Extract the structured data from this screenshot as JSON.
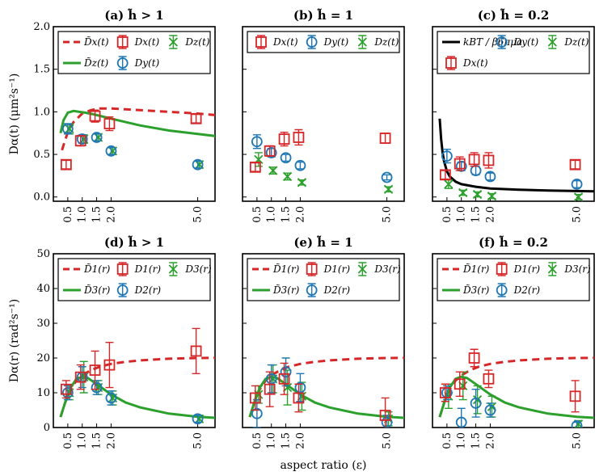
{
  "colors": {
    "x": "#d62728",
    "y": "#1f77b4",
    "z": "#2ca02c",
    "theory": "#000000"
  },
  "xlabel": "aspect ratio (ε)",
  "xticks": [
    "0.5",
    "1.0",
    "1.5",
    "2.0",
    "5.0"
  ],
  "chart_data": [
    {
      "type": "scatter",
      "id": "a",
      "title": "(a) h̃ > 1",
      "ylabel": "Dα(t) (μm²s⁻¹)",
      "ylim": [
        -0.05,
        2.0
      ],
      "yticks": [
        "0.0",
        "0.5",
        "1.0",
        "1.5",
        "2.0"
      ],
      "legend": [
        "D̃x(t)",
        "Dx(t)",
        "Dz(t)",
        "D̃z(t)",
        "Dy(t)"
      ],
      "points": {
        "x": [
          [
            0.5,
            0.38,
            0.05
          ],
          [
            1.0,
            0.66,
            0.06
          ],
          [
            1.5,
            0.95,
            0.07
          ],
          [
            2.0,
            0.86,
            0.08
          ],
          [
            5.0,
            0.92,
            0.05
          ]
        ],
        "y": [
          [
            0.5,
            0.8,
            0.06
          ],
          [
            1.0,
            0.68,
            0.05
          ],
          [
            1.5,
            0.7,
            0.04
          ],
          [
            2.0,
            0.54,
            0.04
          ],
          [
            5.0,
            0.38,
            0.04
          ]
        ],
        "z": [
          [
            0.5,
            0.8,
            0.06
          ],
          [
            1.0,
            0.68,
            0.05
          ],
          [
            1.5,
            0.7,
            0.04
          ],
          [
            2.0,
            0.54,
            0.04
          ],
          [
            5.0,
            0.38,
            0.04
          ]
        ]
      },
      "curves": {
        "x": {
          "x": [
            0.3,
            0.4,
            0.5,
            0.7,
            1.0,
            1.3,
            1.6,
            2.0,
            3.0,
            4.0,
            5.0,
            6.0
          ],
          "y": [
            0.55,
            0.66,
            0.76,
            0.88,
            0.98,
            1.02,
            1.04,
            1.04,
            1.02,
            1.0,
            0.98,
            0.95
          ]
        },
        "z": {
          "x": [
            0.25,
            0.35,
            0.5,
            0.7,
            0.9,
            1.1,
            1.4,
            2.0,
            3.0,
            4.0,
            5.0,
            6.0
          ],
          "y": [
            0.75,
            0.9,
            0.99,
            1.01,
            1.0,
            0.99,
            0.97,
            0.92,
            0.84,
            0.78,
            0.74,
            0.7
          ]
        }
      }
    },
    {
      "type": "scatter",
      "id": "b",
      "title": "(b) h̃ = 1",
      "ylim": [
        -0.05,
        2.0
      ],
      "legend": [
        "Dx(t)",
        "Dy(t)",
        "Dz(t)"
      ],
      "points": {
        "x": [
          [
            0.5,
            0.35,
            0.05
          ],
          [
            1.0,
            0.54,
            0.06
          ],
          [
            1.5,
            0.68,
            0.08
          ],
          [
            2.0,
            0.7,
            0.09
          ],
          [
            5.0,
            0.69,
            0.06
          ]
        ],
        "y": [
          [
            0.5,
            0.65,
            0.08
          ],
          [
            1.0,
            0.52,
            0.05
          ],
          [
            1.5,
            0.46,
            0.04
          ],
          [
            2.0,
            0.37,
            0.04
          ],
          [
            5.0,
            0.23,
            0.03
          ]
        ],
        "z": [
          [
            0.5,
            0.44,
            0.08
          ],
          [
            1.0,
            0.31,
            0.04
          ],
          [
            1.5,
            0.24,
            0.04
          ],
          [
            2.0,
            0.17,
            0.03
          ],
          [
            5.0,
            0.09,
            0.03
          ]
        ]
      }
    },
    {
      "type": "scatter",
      "id": "c",
      "title": "(c) h̃ = 0.2",
      "ylim": [
        -0.05,
        2.0
      ],
      "legend": [
        "kBT / β6πμa",
        "Dy(t)",
        "Dz(t)",
        "Dx(t)"
      ],
      "points": {
        "x": [
          [
            0.5,
            0.26,
            0.05
          ],
          [
            1.0,
            0.39,
            0.08
          ],
          [
            1.5,
            0.44,
            0.08
          ],
          [
            2.0,
            0.43,
            0.09
          ],
          [
            5.0,
            0.38,
            0.05
          ]
        ],
        "y": [
          [
            0.5,
            0.48,
            0.08
          ],
          [
            1.0,
            0.36,
            0.05
          ],
          [
            1.5,
            0.31,
            0.05
          ],
          [
            2.0,
            0.24,
            0.04
          ],
          [
            5.0,
            0.15,
            0.04
          ]
        ],
        "z": [
          [
            0.5,
            0.15,
            0.05
          ],
          [
            1.0,
            0.05,
            0.03
          ],
          [
            1.5,
            0.03,
            0.03
          ],
          [
            2.0,
            0.01,
            0.03
          ],
          [
            5.0,
            0.0,
            0.03
          ]
        ]
      },
      "curves": {
        "theory": {
          "x": [
            0.25,
            0.3,
            0.35,
            0.4,
            0.5,
            0.6,
            0.8,
            1.0,
            1.5,
            2.0,
            3.0,
            4.0,
            5.0,
            6.0
          ],
          "y": [
            0.92,
            0.68,
            0.52,
            0.42,
            0.3,
            0.24,
            0.18,
            0.15,
            0.12,
            0.1,
            0.085,
            0.075,
            0.07,
            0.065
          ]
        }
      }
    },
    {
      "type": "scatter",
      "id": "d",
      "title": "(d) h̃ > 1",
      "ylabel": "Dα(r) (rad²s⁻¹)",
      "ylim": [
        0,
        50
      ],
      "yticks": [
        "0",
        "10",
        "20",
        "30",
        "40",
        "50"
      ],
      "legend": [
        "D̃1(r)",
        "D1(r)",
        "D3(r)",
        "D̃3(r)",
        "D2(r)"
      ],
      "points": {
        "x": [
          [
            0.5,
            11,
            2.5
          ],
          [
            1.0,
            14.5,
            3.5
          ],
          [
            1.5,
            16.5,
            5.5
          ],
          [
            2.0,
            18,
            6.5
          ],
          [
            5.0,
            22,
            6.5
          ]
        ],
        "y": [
          [
            0.5,
            10,
            2.0
          ],
          [
            1.0,
            14.5,
            3.0
          ],
          [
            1.5,
            11.5,
            2.0
          ],
          [
            2.0,
            8.5,
            2.0
          ],
          [
            5.0,
            2.5,
            1.0
          ]
        ],
        "z": [
          [
            0.5,
            10,
            2.0
          ],
          [
            1.0,
            14.5,
            4.5
          ],
          [
            1.5,
            11.5,
            2.0
          ],
          [
            2.0,
            8.5,
            2.0
          ],
          [
            5.0,
            2.5,
            1.0
          ]
        ]
      },
      "curves": {
        "x": {
          "x": [
            0.25,
            0.4,
            0.6,
            0.8,
            1.0,
            1.3,
            1.6,
            2.0,
            2.5,
            3.0,
            4.0,
            5.0,
            6.0
          ],
          "y": [
            3,
            7,
            11,
            13.5,
            15,
            16.5,
            17.5,
            18.3,
            18.9,
            19.3,
            19.8,
            20.0,
            20.1
          ]
        },
        "z": {
          "x": [
            0.25,
            0.4,
            0.6,
            0.8,
            1.0,
            1.2,
            1.5,
            2.0,
            2.5,
            3.0,
            4.0,
            5.0,
            6.0
          ],
          "y": [
            3,
            7,
            11.5,
            14,
            14.6,
            14.2,
            12.5,
            9.5,
            7.2,
            5.8,
            4.0,
            3.1,
            2.6
          ]
        }
      }
    },
    {
      "type": "scatter",
      "id": "e",
      "title": "(e) h̃ = 1",
      "ylim": [
        0,
        50
      ],
      "legend": [
        "D̃1(r)",
        "D1(r)",
        "D3(r)",
        "D̃3(r)",
        "D2(r)"
      ],
      "points": {
        "x": [
          [
            0.5,
            8.5,
            3.5
          ],
          [
            1.0,
            11,
            5.0
          ],
          [
            1.5,
            14,
            4.5
          ],
          [
            2.0,
            8.5,
            4.0
          ],
          [
            5.0,
            3.5,
            5.0
          ]
        ],
        "y": [
          [
            0.5,
            4.0,
            4.0
          ],
          [
            1.0,
            14,
            4.0
          ],
          [
            1.5,
            16,
            4.0
          ],
          [
            2.0,
            11.5,
            4.0
          ],
          [
            5.0,
            1.5,
            2.0
          ]
        ],
        "z": [
          [
            0.5,
            9.5,
            2.5
          ],
          [
            1.0,
            14,
            4.0
          ],
          [
            1.5,
            11.5,
            5.0
          ],
          [
            2.0,
            9,
            4.0
          ],
          [
            5.0,
            2.5,
            2.0
          ]
        ]
      },
      "curves": {
        "x": {
          "x": [
            0.25,
            0.4,
            0.6,
            0.8,
            1.0,
            1.3,
            1.6,
            2.0,
            2.5,
            3.0,
            4.0,
            5.0,
            6.0
          ],
          "y": [
            3,
            7,
            11,
            13.5,
            15,
            16.5,
            17.5,
            18.3,
            18.9,
            19.3,
            19.8,
            20.0,
            20.1
          ]
        },
        "z": {
          "x": [
            0.25,
            0.4,
            0.6,
            0.8,
            1.0,
            1.2,
            1.5,
            2.0,
            2.5,
            3.0,
            4.0,
            5.0,
            6.0
          ],
          "y": [
            3,
            7,
            11.5,
            14,
            14.6,
            14.2,
            12.5,
            9.5,
            7.2,
            5.8,
            4.0,
            3.1,
            2.6
          ]
        }
      }
    },
    {
      "type": "scatter",
      "id": "f",
      "title": "(f) h̃ = 0.2",
      "ylim": [
        0,
        50
      ],
      "legend": [
        "D̃1(r)",
        "D1(r)",
        "D3(r)",
        "D̃3(r)",
        "D2(r)"
      ],
      "points": {
        "x": [
          [
            0.5,
            10,
            2.5
          ],
          [
            1.0,
            12.5,
            3.5
          ],
          [
            1.5,
            20,
            2.5
          ],
          [
            2.0,
            14,
            2.5
          ],
          [
            5.0,
            9,
            4.5
          ]
        ],
        "y": [
          [
            0.5,
            10,
            2.0
          ],
          [
            1.0,
            1.5,
            4.0
          ],
          [
            1.5,
            7,
            4.0
          ],
          [
            2.0,
            5,
            2.0
          ],
          [
            5.0,
            0.5,
            1.0
          ]
        ],
        "z": [
          [
            0.5,
            9,
            3.5
          ],
          [
            1.0,
            12,
            4.0
          ],
          [
            1.5,
            8,
            4.0
          ],
          [
            2.0,
            6,
            3.0
          ],
          [
            5.0,
            1.0,
            1.0
          ]
        ]
      },
      "curves": {
        "x": {
          "x": [
            0.25,
            0.4,
            0.6,
            0.8,
            1.0,
            1.3,
            1.6,
            2.0,
            2.5,
            3.0,
            4.0,
            5.0,
            6.0
          ],
          "y": [
            3,
            7,
            11,
            13.5,
            15,
            16.5,
            17.5,
            18.3,
            18.9,
            19.3,
            19.8,
            20.0,
            20.1
          ]
        },
        "z": {
          "x": [
            0.25,
            0.4,
            0.6,
            0.8,
            1.0,
            1.2,
            1.5,
            2.0,
            2.5,
            3.0,
            4.0,
            5.0,
            6.0
          ],
          "y": [
            3,
            7,
            11.5,
            14,
            14.6,
            14.2,
            12.5,
            9.5,
            7.2,
            5.8,
            4.0,
            3.1,
            2.6
          ]
        }
      }
    }
  ]
}
